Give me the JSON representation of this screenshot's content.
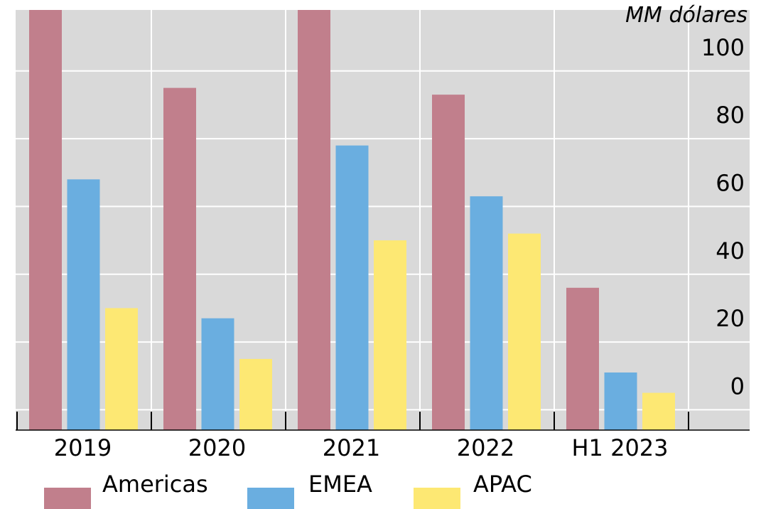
{
  "chart_data": {
    "type": "bar",
    "unit_label": "MM dólares",
    "categories": [
      "2019",
      "2020",
      "2021",
      "2022",
      "H1 2023"
    ],
    "series": [
      {
        "name": "Americas",
        "color": "#c17f8c",
        "values": [
          118,
          95,
          118,
          93,
          36
        ]
      },
      {
        "name": "EMEA",
        "color": "#6aaee0",
        "values": [
          68,
          27,
          78,
          63,
          11
        ]
      },
      {
        "name": "APAC",
        "color": "#fde873",
        "values": [
          30,
          15,
          50,
          52,
          5
        ]
      }
    ],
    "y_ticks": [
      0,
      20,
      40,
      60,
      80,
      100
    ],
    "ylim": [
      -6,
      118
    ],
    "y_axis_position": "right",
    "grid": true,
    "background": "#d9d9d9",
    "legend_position": "bottom-left"
  }
}
